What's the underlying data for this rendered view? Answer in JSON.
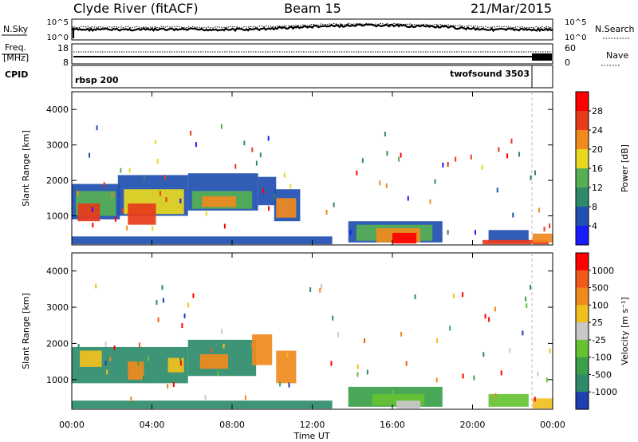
{
  "header": {
    "station": "Clyde River (fitACF)",
    "beam": "Beam 15",
    "date": "21/Mar/2015"
  },
  "strip_nsky": {
    "left_label": "N.Sky",
    "right_label": "N.Search",
    "left_ticks": [
      "10^5",
      "10^0"
    ],
    "right_ticks": [
      "10^5",
      "10^0"
    ]
  },
  "strip_freq": {
    "left_label_1": "Freq.",
    "left_label_2": "[MHz]",
    "right_label": "Nave",
    "left_ticks": [
      "18",
      "8"
    ],
    "right_ticks": [
      "60",
      "0"
    ]
  },
  "cpid": {
    "label": "CPID",
    "programs": [
      {
        "name": "rbsp 200",
        "start_hour": 0.0
      },
      {
        "name": "twofsound 3503",
        "start_hour": 23.0
      }
    ]
  },
  "time_axis": {
    "xlabel": "Time UT",
    "ticks": [
      "00:00",
      "04:00",
      "08:00",
      "12:00",
      "16:00",
      "20:00",
      "00:00"
    ]
  },
  "chart_data": [
    {
      "type": "heatmap",
      "title": "Power",
      "x_range_hours": [
        0,
        24
      ],
      "ylabel": "Slant Range [km]",
      "ylim_km": [
        180,
        4500
      ],
      "yticks": [
        "1000",
        "2000",
        "3000",
        "4000"
      ],
      "colorbar": {
        "label": "Power [dB]",
        "ticks": [
          "4",
          "8",
          "12",
          "16",
          "20",
          "24",
          "28"
        ],
        "colors": [
          "#1a1aff",
          "#1f4fb0",
          "#2e8b6a",
          "#55b055",
          "#e8d820",
          "#f08a1e",
          "#e83a1a",
          "#ff0000"
        ]
      },
      "patches": [
        {
          "t0": 0.0,
          "t1": 2.4,
          "r0": 900,
          "r1": 1900,
          "color": "#1f4fb0"
        },
        {
          "t0": 0.2,
          "t1": 2.2,
          "r0": 1000,
          "r1": 1700,
          "color": "#55b055"
        },
        {
          "t0": 0.3,
          "t1": 1.4,
          "r0": 850,
          "r1": 1350,
          "color": "#e83a1a"
        },
        {
          "t0": 2.3,
          "t1": 5.8,
          "r0": 1000,
          "r1": 2150,
          "color": "#1f4fb0"
        },
        {
          "t0": 2.6,
          "t1": 5.6,
          "r0": 1050,
          "r1": 1750,
          "color": "#e8d820"
        },
        {
          "t0": 2.8,
          "t1": 4.2,
          "r0": 750,
          "r1": 1350,
          "color": "#e83a1a"
        },
        {
          "t0": 5.8,
          "t1": 9.3,
          "r0": 1150,
          "r1": 2200,
          "color": "#1f4fb0"
        },
        {
          "t0": 6.0,
          "t1": 9.0,
          "r0": 1200,
          "r1": 1700,
          "color": "#55b055"
        },
        {
          "t0": 6.5,
          "t1": 8.2,
          "r0": 1250,
          "r1": 1550,
          "color": "#f08a1e"
        },
        {
          "t0": 9.3,
          "t1": 10.2,
          "r0": 1300,
          "r1": 2100,
          "color": "#1f4fb0"
        },
        {
          "t0": 10.1,
          "t1": 11.4,
          "r0": 850,
          "r1": 1750,
          "color": "#1f4fb0"
        },
        {
          "t0": 10.2,
          "t1": 11.2,
          "r0": 950,
          "r1": 1500,
          "color": "#f08a1e"
        },
        {
          "t0": 13.8,
          "t1": 18.5,
          "r0": 250,
          "r1": 850,
          "color": "#1f4fb0"
        },
        {
          "t0": 14.2,
          "t1": 18.0,
          "r0": 300,
          "r1": 750,
          "color": "#55b055"
        },
        {
          "t0": 15.2,
          "t1": 17.4,
          "r0": 250,
          "r1": 650,
          "color": "#f08a1e"
        },
        {
          "t0": 16.0,
          "t1": 17.2,
          "r0": 220,
          "r1": 520,
          "color": "#ff0000"
        },
        {
          "t0": 20.8,
          "t1": 22.8,
          "r0": 250,
          "r1": 600,
          "color": "#1f4fb0"
        },
        {
          "t0": 20.5,
          "t1": 23.8,
          "r0": 200,
          "r1": 320,
          "color": "#e83a1a"
        },
        {
          "t0": 23.0,
          "t1": 24.0,
          "r0": 250,
          "r1": 500,
          "color": "#f08a1e"
        },
        {
          "t0": 0.0,
          "t1": 13.0,
          "r0": 200,
          "r1": 420,
          "color": "#1f4fb0"
        }
      ]
    },
    {
      "type": "heatmap",
      "title": "Velocity",
      "x_range_hours": [
        0,
        24
      ],
      "ylabel": "Slant Range [km]",
      "ylim_km": [
        180,
        4500
      ],
      "yticks": [
        "1000",
        "2000",
        "3000",
        "4000"
      ],
      "colorbar": {
        "label": "Velocity [m s⁻¹]",
        "ticks": [
          "1000",
          "500",
          "100",
          "25",
          "-25",
          "-100",
          "-500",
          "-1000"
        ],
        "colors": [
          "#1f3fb0",
          "#2e8b6a",
          "#3aa04a",
          "#66c233",
          "#c8c8c8",
          "#f0c020",
          "#f08a1e",
          "#f05a1a",
          "#ff0000"
        ]
      },
      "patches": [
        {
          "t0": 0.0,
          "t1": 5.8,
          "r0": 900,
          "r1": 1900,
          "color": "#2e8b6a"
        },
        {
          "t0": 0.4,
          "t1": 1.5,
          "r0": 1350,
          "r1": 1800,
          "color": "#f0c020"
        },
        {
          "t0": 2.8,
          "t1": 3.6,
          "r0": 1000,
          "r1": 1500,
          "color": "#f08a1e"
        },
        {
          "t0": 4.8,
          "t1": 5.6,
          "r0": 1200,
          "r1": 1600,
          "color": "#f0c020"
        },
        {
          "t0": 5.8,
          "t1": 9.2,
          "r0": 1100,
          "r1": 2100,
          "color": "#2e8b6a"
        },
        {
          "t0": 6.4,
          "t1": 7.8,
          "r0": 1300,
          "r1": 1700,
          "color": "#f08a1e"
        },
        {
          "t0": 9.0,
          "t1": 10.0,
          "r0": 1400,
          "r1": 2250,
          "color": "#f08a1e"
        },
        {
          "t0": 10.2,
          "t1": 11.2,
          "r0": 900,
          "r1": 1800,
          "color": "#f08a1e"
        },
        {
          "t0": 13.8,
          "t1": 18.5,
          "r0": 250,
          "r1": 800,
          "color": "#3aa04a"
        },
        {
          "t0": 15.0,
          "t1": 17.6,
          "r0": 280,
          "r1": 600,
          "color": "#66c233"
        },
        {
          "t0": 16.2,
          "t1": 17.4,
          "r0": 200,
          "r1": 420,
          "color": "#c8c8c8"
        },
        {
          "t0": 20.8,
          "t1": 22.8,
          "r0": 250,
          "r1": 600,
          "color": "#66c233"
        },
        {
          "t0": 23.0,
          "t1": 24.0,
          "r0": 200,
          "r1": 480,
          "color": "#f0c020"
        },
        {
          "t0": 0.0,
          "t1": 13.0,
          "r0": 200,
          "r1": 420,
          "color": "#2e8b6a"
        }
      ]
    }
  ]
}
